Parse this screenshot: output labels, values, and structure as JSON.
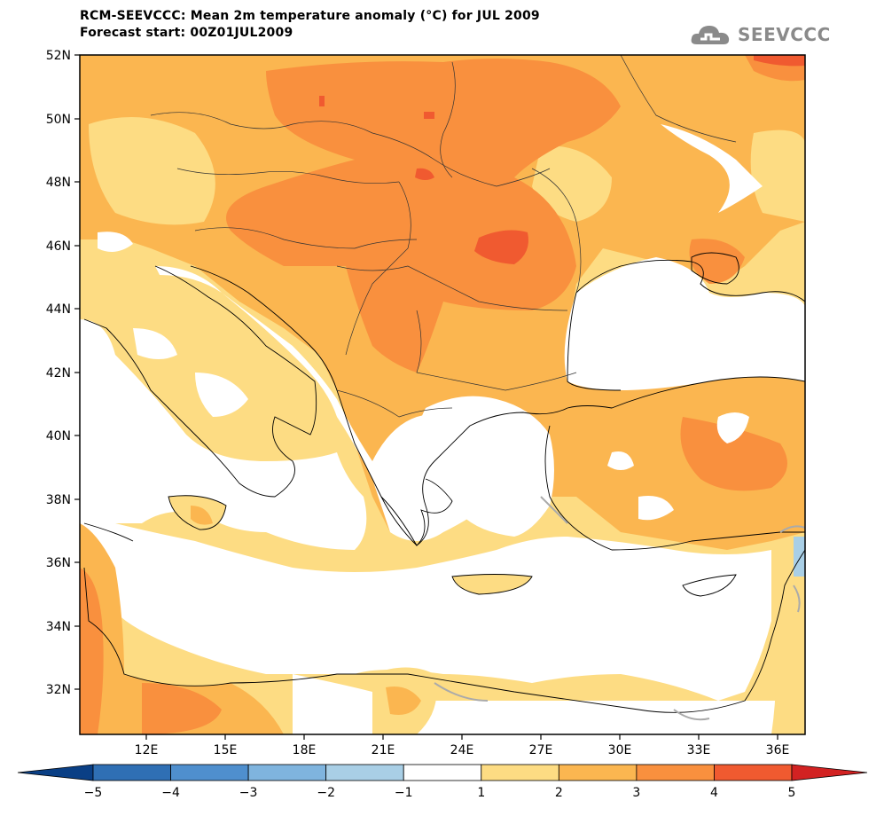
{
  "title": {
    "line1": "RCM-SEEVCCC: Mean 2m temperature anomaly (°C) for JUL 2009",
    "line2": "Forecast start: 00Z01JUL2009"
  },
  "logo": {
    "text": "SEEVCCC",
    "icon": "cloud-icon"
  },
  "map": {
    "lat_ticks": [
      "52N",
      "50N",
      "48N",
      "46N",
      "44N",
      "42N",
      "40N",
      "38N",
      "36N",
      "34N",
      "32N"
    ],
    "lon_ticks": [
      "12E",
      "15E",
      "18E",
      "21E",
      "24E",
      "27E",
      "30E",
      "33E",
      "36E"
    ],
    "lat_range": [
      30.6,
      52
    ],
    "lon_range": [
      9.5,
      37.2
    ]
  },
  "colorbar": {
    "labels": [
      "−5",
      "−4",
      "−3",
      "−2",
      "−1",
      "1",
      "2",
      "3",
      "4",
      "5"
    ],
    "colors": [
      "#0a3f85",
      "#2f6fb4",
      "#4f8fce",
      "#7fb4de",
      "#a9cfe6",
      "#ffffff",
      "#fddc83",
      "#fbb650",
      "#f9903e",
      "#f05a30",
      "#d22222"
    ]
  }
}
